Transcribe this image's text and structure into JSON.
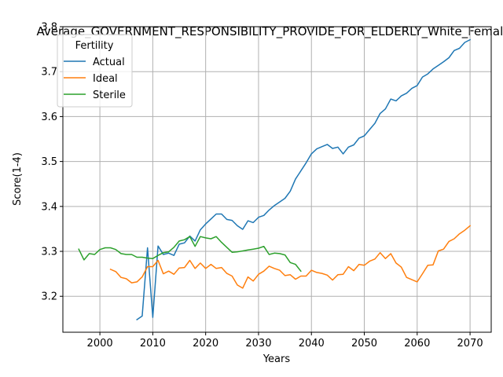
{
  "chart_data": {
    "type": "line",
    "title": "Average_GOVERNMENT_RESPONSIBILITY_PROVIDE_FOR_ELDERLY_White_Female",
    "xlabel": "Years",
    "ylabel": "Score(1-4)",
    "xlim": [
      1993,
      2074
    ],
    "ylim": [
      3.12,
      3.8
    ],
    "xticks": [
      2000,
      2010,
      2020,
      2030,
      2040,
      2050,
      2060,
      2070
    ],
    "yticks": [
      3.2,
      3.3,
      3.4,
      3.5,
      3.6,
      3.7,
      3.8
    ],
    "grid": true,
    "legend": {
      "title": "Fertility",
      "placement": "upper-left"
    },
    "series": [
      {
        "name": "Actual",
        "color": "#1f77b4",
        "x": [
          2007,
          2008,
          2009,
          2010,
          2011,
          2012,
          2013,
          2014,
          2015,
          2016,
          2017,
          2018,
          2019,
          2020,
          2021,
          2022,
          2023,
          2024,
          2025,
          2026,
          2027,
          2028,
          2029,
          2030,
          2031,
          2032,
          2033,
          2034,
          2035,
          2036,
          2037,
          2038,
          2039,
          2040,
          2041,
          2042,
          2043,
          2044,
          2045,
          2046,
          2047,
          2048,
          2049,
          2050,
          2051,
          2052,
          2053,
          2054,
          2055,
          2056,
          2057,
          2058,
          2059,
          2060,
          2061,
          2062,
          2063,
          2064,
          2065,
          2066,
          2067,
          2068,
          2069,
          2070
        ],
        "y": [
          3.148,
          3.156,
          3.308,
          3.153,
          3.312,
          3.293,
          3.296,
          3.291,
          3.316,
          3.319,
          3.334,
          3.323,
          3.348,
          3.361,
          3.372,
          3.383,
          3.383,
          3.371,
          3.369,
          3.357,
          3.349,
          3.368,
          3.364,
          3.376,
          3.38,
          3.392,
          3.402,
          3.41,
          3.418,
          3.434,
          3.461,
          3.479,
          3.497,
          3.517,
          3.528,
          3.533,
          3.538,
          3.529,
          3.532,
          3.517,
          3.532,
          3.537,
          3.552,
          3.557,
          3.571,
          3.585,
          3.607,
          3.617,
          3.639,
          3.635,
          3.646,
          3.652,
          3.663,
          3.669,
          3.688,
          3.695,
          3.706,
          3.714,
          3.722,
          3.731,
          3.747,
          3.752,
          3.765,
          3.771
        ]
      },
      {
        "name": "Ideal",
        "color": "#ff7f0e",
        "x": [
          2002,
          2003,
          2004,
          2005,
          2006,
          2007,
          2008,
          2009,
          2010,
          2011,
          2012,
          2013,
          2014,
          2015,
          2016,
          2017,
          2018,
          2019,
          2020,
          2021,
          2022,
          2023,
          2024,
          2025,
          2026,
          2027,
          2028,
          2029,
          2030,
          2031,
          2032,
          2033,
          2034,
          2035,
          2036,
          2037,
          2038,
          2039,
          2040,
          2041,
          2042,
          2043,
          2044,
          2045,
          2046,
          2047,
          2048,
          2049,
          2050,
          2051,
          2052,
          2053,
          2054,
          2055,
          2056,
          2057,
          2058,
          2059,
          2060,
          2061,
          2062,
          2063,
          2064,
          2065,
          2066,
          2067,
          2068,
          2069,
          2070
        ],
        "y": [
          3.26,
          3.255,
          3.242,
          3.239,
          3.23,
          3.232,
          3.243,
          3.266,
          3.266,
          3.28,
          3.25,
          3.256,
          3.249,
          3.263,
          3.264,
          3.28,
          3.262,
          3.274,
          3.262,
          3.271,
          3.262,
          3.264,
          3.251,
          3.245,
          3.225,
          3.218,
          3.243,
          3.234,
          3.249,
          3.256,
          3.267,
          3.262,
          3.258,
          3.246,
          3.248,
          3.238,
          3.245,
          3.245,
          3.258,
          3.253,
          3.251,
          3.247,
          3.236,
          3.248,
          3.249,
          3.266,
          3.257,
          3.271,
          3.269,
          3.278,
          3.283,
          3.297,
          3.284,
          3.295,
          3.274,
          3.265,
          3.242,
          3.237,
          3.232,
          3.25,
          3.269,
          3.27,
          3.301,
          3.305,
          3.322,
          3.328,
          3.339,
          3.347,
          3.357
        ]
      },
      {
        "name": "Sterile",
        "color": "#2ca02c",
        "x": [
          1996,
          1997,
          1998,
          1999,
          2000,
          2001,
          2002,
          2003,
          2004,
          2005,
          2006,
          2007,
          2008,
          2009,
          2010,
          2011,
          2012,
          2013,
          2014,
          2015,
          2016,
          2017,
          2018,
          2019,
          2020,
          2021,
          2022,
          2023,
          2024,
          2025,
          2026,
          2027,
          2028,
          2029,
          2030,
          2031,
          2032,
          2033,
          2034,
          2035,
          2036,
          2037,
          2038
        ],
        "y": [
          3.305,
          3.281,
          3.295,
          3.293,
          3.304,
          3.308,
          3.308,
          3.304,
          3.295,
          3.293,
          3.293,
          3.287,
          3.287,
          3.285,
          3.284,
          3.291,
          3.297,
          3.299,
          3.309,
          3.323,
          3.326,
          3.333,
          3.311,
          3.333,
          3.33,
          3.328,
          3.333,
          3.32,
          3.309,
          3.298,
          3.299,
          3.301,
          3.303,
          3.305,
          3.307,
          3.311,
          3.293,
          3.296,
          3.295,
          3.292,
          3.275,
          3.271,
          3.256
        ]
      }
    ]
  }
}
